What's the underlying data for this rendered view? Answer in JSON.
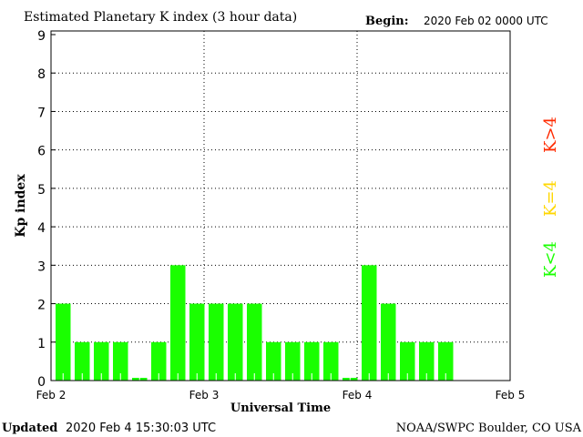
{
  "chart_data": {
    "type": "bar",
    "title": "Estimated Planetary K index (3 hour data)",
    "begin_label": "Begin:",
    "begin_value": "2020 Feb 02 0000 UTC",
    "xlabel": "Universal Time",
    "ylabel": "Kp index",
    "ylim": [
      0,
      9
    ],
    "yticks": [
      "0",
      "1",
      "2",
      "3",
      "4",
      "5",
      "6",
      "7",
      "8",
      "9"
    ],
    "xticks": [
      "Feb 2",
      "Feb 3",
      "Feb 4",
      "Feb 5"
    ],
    "interval_hours": 3,
    "grid": true,
    "values": [
      2,
      1,
      1,
      1,
      0,
      1,
      3,
      2,
      2,
      2,
      2,
      1,
      1,
      1,
      1,
      0,
      3,
      2,
      1,
      1,
      1
    ],
    "bar_color": "#1aff00",
    "legend": [
      {
        "label": "K<4",
        "color": "#1aff00"
      },
      {
        "label": "K=4",
        "color": "#ffd700"
      },
      {
        "label": "K>4",
        "color": "#ff2a00"
      }
    ]
  },
  "footer": {
    "updated_label": "Updated",
    "updated_value": "2020 Feb  4 15:30:03 UTC",
    "source": "NOAA/SWPC Boulder, CO USA"
  }
}
